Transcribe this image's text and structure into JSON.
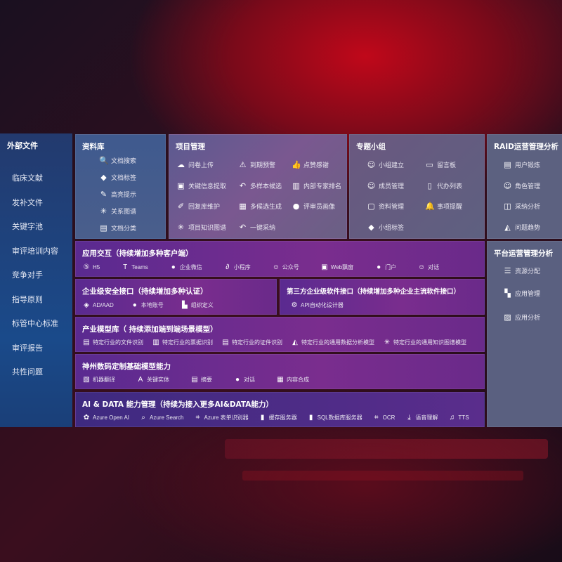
{
  "sidebar": {
    "title": "外部文件",
    "items": [
      "临床文献",
      "发补文件",
      "关键字池",
      "审评培训内容",
      "竞争对手",
      "指导原则",
      "标管中心标准",
      "审评报告",
      "共性问题"
    ]
  },
  "colors": {
    "sidebar": "#1e4480",
    "gray_panel": "#5e6380",
    "purple_panel": "#6a2d8c",
    "ai_panel": "#4a2a86"
  },
  "panels": {
    "library": {
      "title": "资料库",
      "items": [
        {
          "label": "文档搜索",
          "icon": "doc-search-icon"
        },
        {
          "label": "文档标签",
          "icon": "tag-icon"
        },
        {
          "label": "高亮提示",
          "icon": "pen-icon"
        },
        {
          "label": "关系图谱",
          "icon": "graph-icon"
        },
        {
          "label": "文档分类",
          "icon": "doc-category-icon"
        }
      ]
    },
    "project": {
      "title": "项目管理",
      "items": [
        {
          "label": "问卷上传",
          "icon": "cloud-upload-icon"
        },
        {
          "label": "到期预警",
          "icon": "alarm-icon"
        },
        {
          "label": "点赞感谢",
          "icon": "thumbs-up-icon"
        },
        {
          "label": "关键信息提取",
          "icon": "window-icon"
        },
        {
          "label": "多样本候选",
          "icon": "reply-icon"
        },
        {
          "label": "内部专家排名",
          "icon": "ranking-icon"
        },
        {
          "label": "回复库维护",
          "icon": "edit-icon"
        },
        {
          "label": "多候选生成",
          "icon": "puzzle-icon"
        },
        {
          "label": "评审员画像",
          "icon": "person-icon"
        },
        {
          "label": "项目知识图谱",
          "icon": "graph-icon"
        },
        {
          "label": "一键采纳",
          "icon": "reply-icon"
        }
      ]
    },
    "group": {
      "title": "专题小组",
      "items": [
        {
          "label": "小组建立",
          "icon": "users-icon"
        },
        {
          "label": "留言板",
          "icon": "bbs-icon"
        },
        {
          "label": "成员管理",
          "icon": "user-add-icon"
        },
        {
          "label": "代办列表",
          "icon": "clipboard-icon"
        },
        {
          "label": "资料管理",
          "icon": "folder-icon"
        },
        {
          "label": "事项提醒",
          "icon": "bell-icon"
        },
        {
          "label": "小组标签",
          "icon": "tag-icon"
        }
      ]
    },
    "raid": {
      "title": "RAID运营管理分析",
      "items": [
        {
          "label": "用户锻炼",
          "icon": "id-card-icon"
        },
        {
          "label": "角色管理",
          "icon": "users-icon"
        },
        {
          "label": "采纳分析",
          "icon": "qa-icon"
        },
        {
          "label": "问题趋势",
          "icon": "trend-icon"
        }
      ]
    },
    "platform": {
      "title": "平台运营管理分析",
      "items": [
        {
          "label": "资源分配",
          "icon": "checklist-icon"
        },
        {
          "label": "应用管理",
          "icon": "apps-icon"
        },
        {
          "label": "应用分析",
          "icon": "analysis-icon"
        }
      ]
    },
    "clients": {
      "title": "应用交互（持续增加多种客户端）",
      "items": [
        {
          "label": "H5",
          "icon": "html5-icon"
        },
        {
          "label": "Teams",
          "icon": "teams-icon"
        },
        {
          "label": "企业微信",
          "icon": "wechat-icon"
        },
        {
          "label": "小程序",
          "icon": "miniprogram-icon"
        },
        {
          "label": "公众号",
          "icon": "users-icon"
        },
        {
          "label": "Web飘窗",
          "icon": "window-icon"
        },
        {
          "label": "门户",
          "icon": "person-icon"
        },
        {
          "label": "对话",
          "icon": "chat-users-icon"
        }
      ]
    },
    "security": {
      "title": "企业级安全接口（持续增加多种认证）",
      "items": [
        {
          "label": "AD/AAD",
          "icon": "ad-icon"
        },
        {
          "label": "本地账号",
          "icon": "person-icon"
        },
        {
          "label": "组织定义",
          "icon": "org-icon"
        }
      ]
    },
    "thirdparty": {
      "title": "第三方企业级软件接口（持续增加多种企业主流软件接口）",
      "items": [
        {
          "label": "API自动化设计器",
          "icon": "gear-icon"
        }
      ]
    },
    "industry": {
      "title": "产业模型库（ 持续添加端到端场景模型）",
      "items": [
        {
          "label": "特定行业的文件识别",
          "icon": "doc-icon"
        },
        {
          "label": "特定行业的票据识别",
          "icon": "receipt-icon"
        },
        {
          "label": "特定行业的证件识别",
          "icon": "id-card-icon"
        },
        {
          "label": "特定行业的通用数据分析模型",
          "icon": "chart-icon"
        },
        {
          "label": "特定行业的通用知识图谱模型",
          "icon": "graph-icon"
        }
      ]
    },
    "base": {
      "title": "神州数码定制基础模型能力",
      "items": [
        {
          "label": "机器翻译",
          "icon": "translate-icon"
        },
        {
          "label": "关键实体",
          "icon": "entity-icon"
        },
        {
          "label": "摘要",
          "icon": "doc-icon"
        },
        {
          "label": "对话",
          "icon": "chat-icon"
        },
        {
          "label": "内容合成",
          "icon": "puzzle-icon"
        }
      ]
    },
    "ai": {
      "title": "AI & DATA 能力管理（持续为接入更多AI&DATA能力）",
      "items": [
        {
          "label": "Azure Open AI",
          "icon": "openai-icon"
        },
        {
          "label": "Azure Search",
          "icon": "search-icon"
        },
        {
          "label": "Azure 表单识别器",
          "icon": "form-icon"
        },
        {
          "label": "缓存服务器",
          "icon": "cache-icon"
        },
        {
          "label": "SQL数据库服务器",
          "icon": "database-icon"
        },
        {
          "label": "OCR",
          "icon": "ocr-icon"
        },
        {
          "label": "语音理解",
          "icon": "download-icon"
        },
        {
          "label": "TTS",
          "icon": "tts-icon"
        }
      ]
    }
  }
}
